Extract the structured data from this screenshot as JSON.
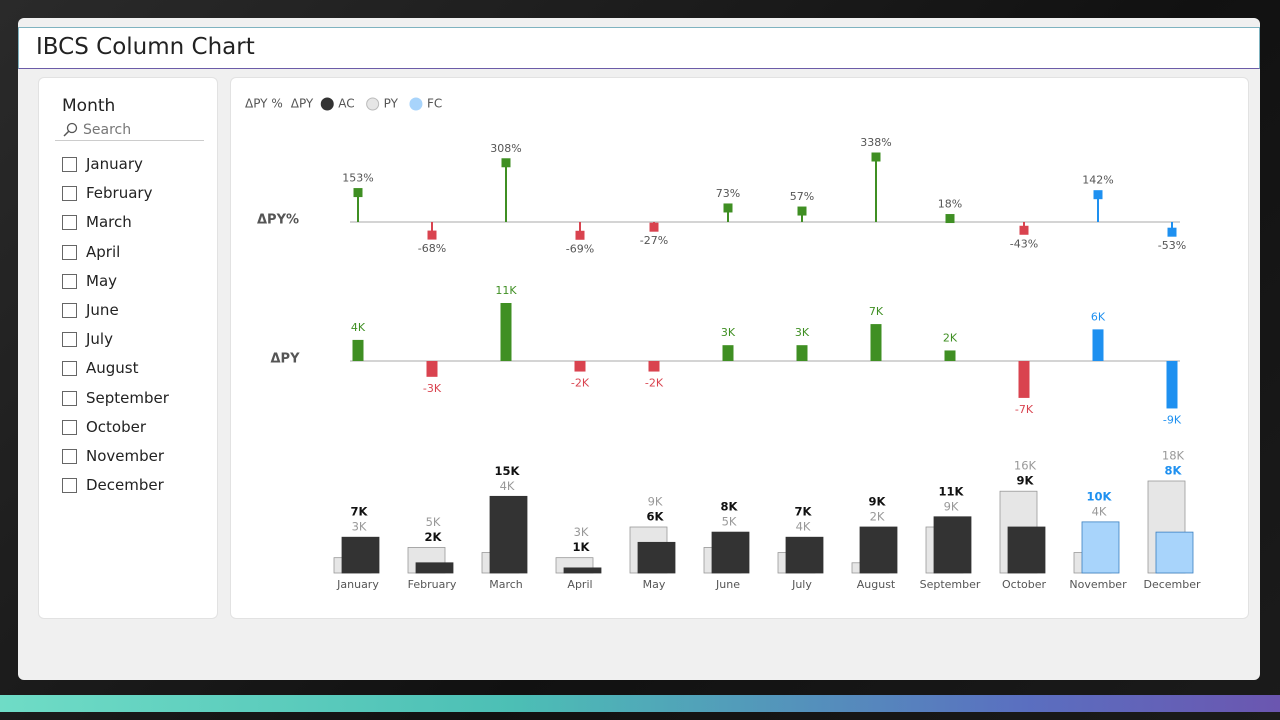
{
  "header": {
    "title": "IBCS Column Chart"
  },
  "slicer": {
    "title": "Month",
    "search_placeholder": "Search",
    "items": [
      "January",
      "February",
      "March",
      "April",
      "May",
      "June",
      "July",
      "August",
      "September",
      "October",
      "November",
      "December"
    ]
  },
  "chart_data": [
    {
      "type": "lollipop",
      "title": "ΔPY%",
      "values": [
        153,
        -68,
        308,
        -69,
        -27,
        73,
        57,
        338,
        18,
        -43,
        142,
        -53
      ],
      "value_labels": [
        "153%",
        "-68%",
        "308%",
        "-69%",
        "-27%",
        "73%",
        "57%",
        "338%",
        "18%",
        "-43%",
        "142%",
        "-53%"
      ],
      "positive_color": "#3f8f23",
      "negative_color": "#d9434f",
      "forecast_color": "#1e90f0"
    },
    {
      "type": "delta-bar",
      "title": "ΔPY",
      "values": [
        4,
        -3,
        11,
        -2,
        -2,
        3,
        3,
        7,
        2,
        -7,
        6,
        -9
      ],
      "value_labels": [
        "4K",
        "-3K",
        "11K",
        "-2K",
        "-2K",
        "3K",
        "3K",
        "7K",
        "2K",
        "-7K",
        "6K",
        "-9K"
      ],
      "positive_color": "#3f8f23",
      "negative_color": "#d9434f",
      "forecast_color": "#1e90f0"
    },
    {
      "type": "column",
      "legend_labels": [
        "ΔPY %",
        "ΔPY"
      ],
      "categories": [
        "January",
        "February",
        "March",
        "April",
        "May",
        "June",
        "July",
        "August",
        "September",
        "October",
        "November",
        "December"
      ],
      "series": [
        {
          "name": "AC",
          "color": "#333333",
          "values": [
            7,
            2,
            15,
            1,
            6,
            8,
            7,
            9,
            11,
            9,
            null,
            null
          ],
          "value_labels": [
            "7K",
            "2K",
            "15K",
            "1K",
            "6K",
            "8K",
            "7K",
            "9K",
            "11K",
            "9K",
            null,
            null
          ]
        },
        {
          "name": "PY",
          "color": "#e6e6e6",
          "values": [
            3,
            5,
            4,
            3,
            9,
            5,
            4,
            2,
            9,
            16,
            4,
            18
          ],
          "value_labels": [
            "3K",
            "5K",
            "4K",
            "3K",
            "9K",
            "5K",
            "4K",
            "2K",
            "9K",
            "16K",
            "4K",
            "18K"
          ]
        },
        {
          "name": "FC",
          "color": "#a8d4fb",
          "values": [
            null,
            null,
            null,
            null,
            null,
            null,
            null,
            null,
            null,
            null,
            10,
            8
          ],
          "value_labels": [
            null,
            null,
            null,
            null,
            null,
            null,
            null,
            null,
            null,
            null,
            "10K",
            "8K"
          ]
        }
      ]
    }
  ]
}
